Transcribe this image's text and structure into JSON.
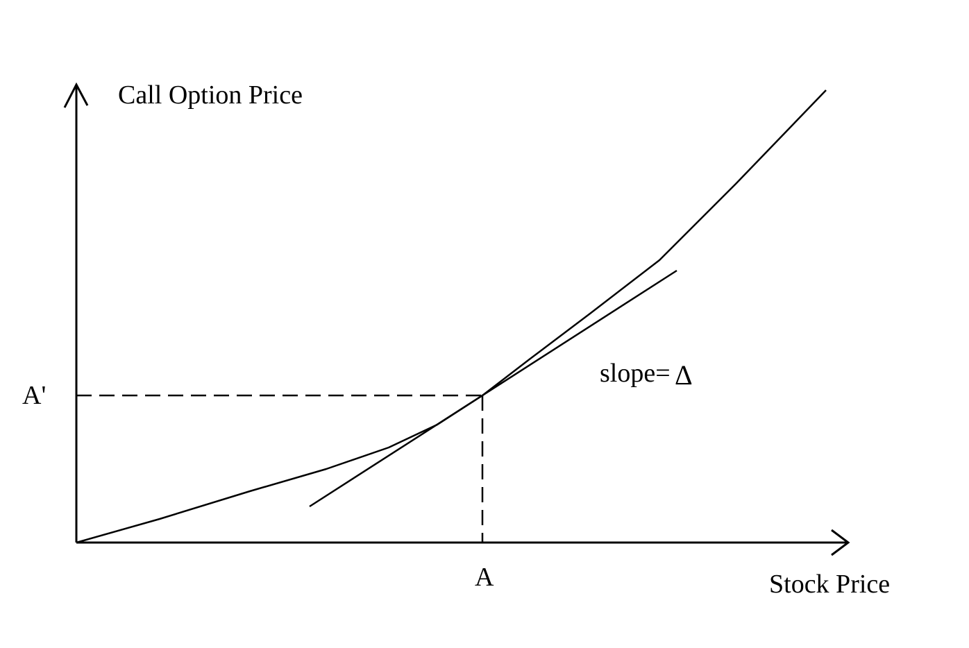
{
  "diagram": {
    "y_axis_label": "Call Option Price",
    "x_axis_label": "Stock Price",
    "point_x_label": "A",
    "point_y_label": "A'",
    "tangent_label": "slope=",
    "delta_symbol": "Δ"
  },
  "colors": {
    "background": "#ffffff",
    "ink": "#000000"
  }
}
